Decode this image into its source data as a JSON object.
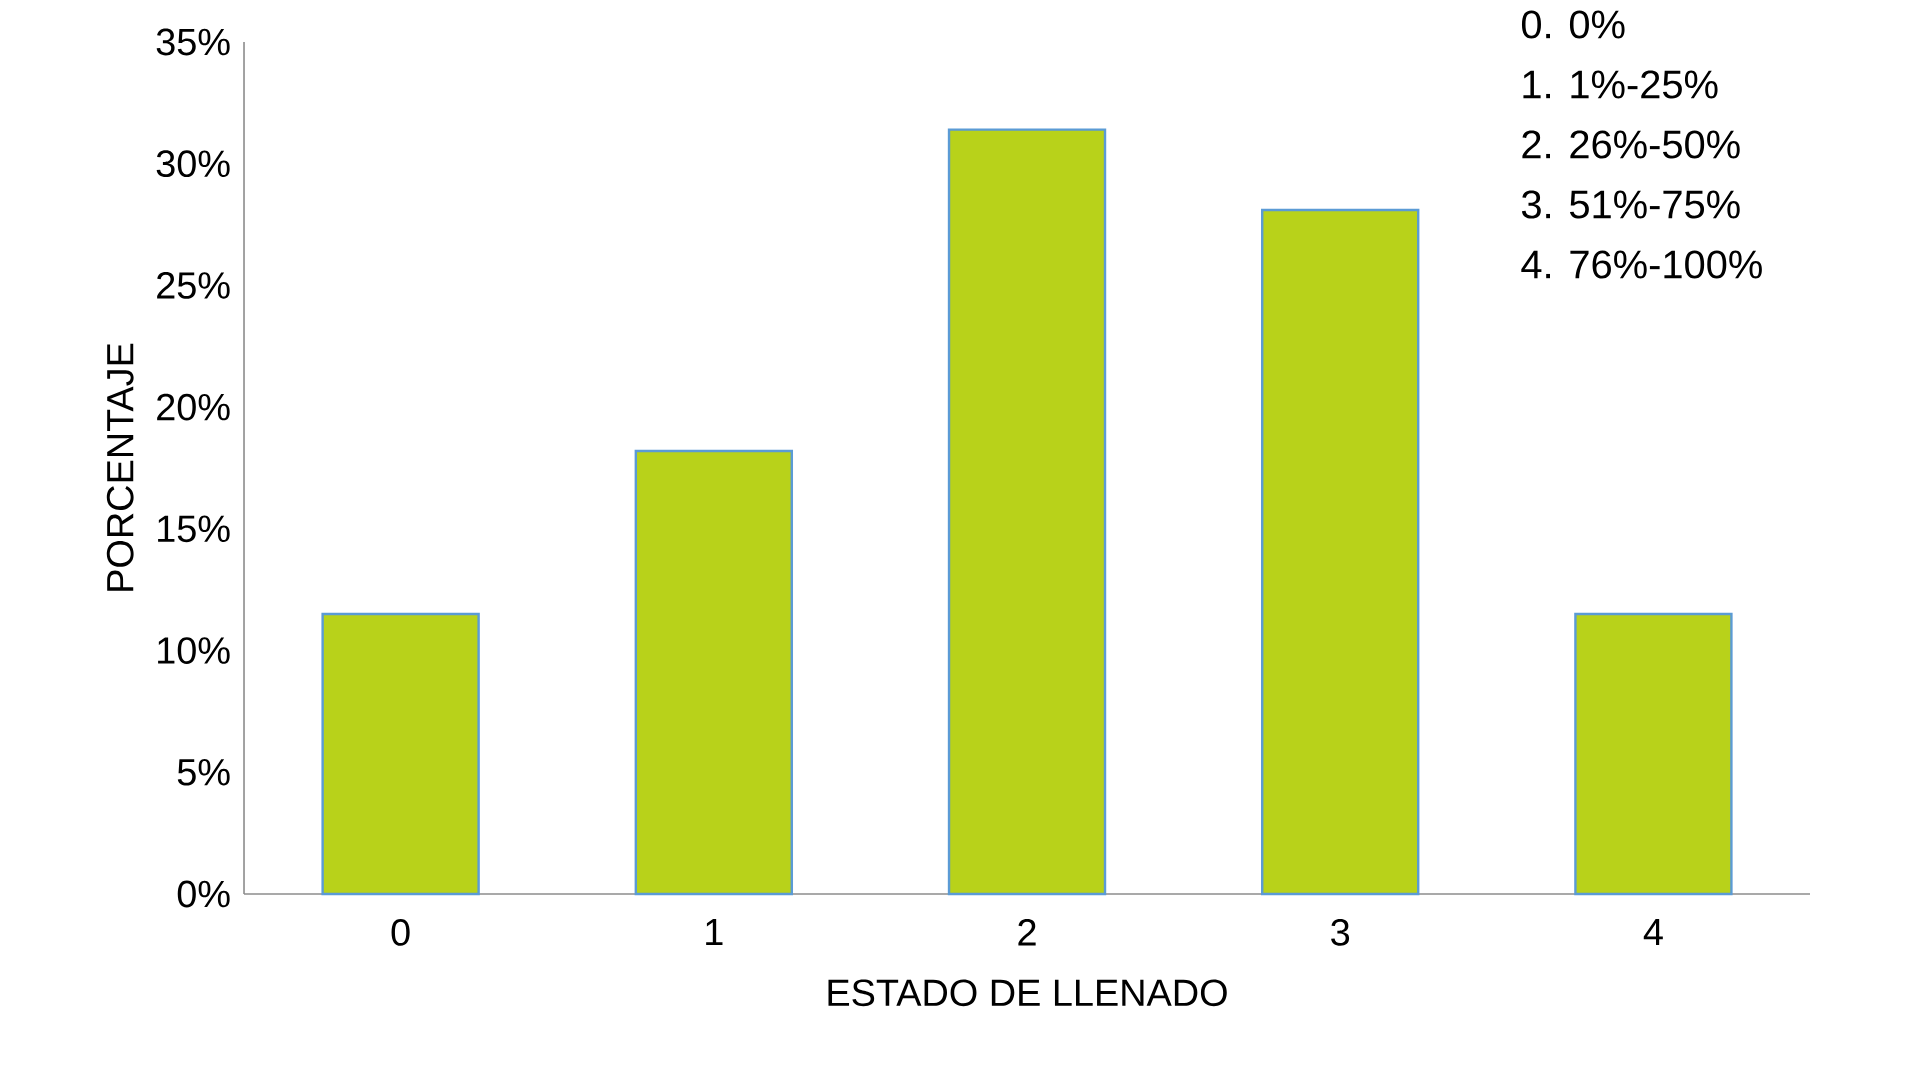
{
  "chart_data": {
    "type": "bar",
    "xlabel": "ESTADO DE LLENADO",
    "ylabel": "PORCENTAJE",
    "categories": [
      "0",
      "1",
      "2",
      "3",
      "4"
    ],
    "values": [
      11.5,
      18.2,
      31.4,
      28.1,
      11.5
    ],
    "color": "#b8d21a",
    "ylim": [
      0,
      35
    ],
    "yticks": [
      {
        "value": 0,
        "label": "0%"
      },
      {
        "value": 5,
        "label": "5%"
      },
      {
        "value": 10,
        "label": "10%"
      },
      {
        "value": 15,
        "label": "15%"
      },
      {
        "value": 20,
        "label": "20%"
      },
      {
        "value": 25,
        "label": "25%"
      },
      {
        "value": 30,
        "label": "30%"
      },
      {
        "value": 35,
        "label": "35%"
      }
    ],
    "annotations": [
      "0.  0%",
      "1.  1%-25%",
      "2.  26%-50%",
      "3.  51%-75%",
      "4.  76%-100%"
    ]
  }
}
